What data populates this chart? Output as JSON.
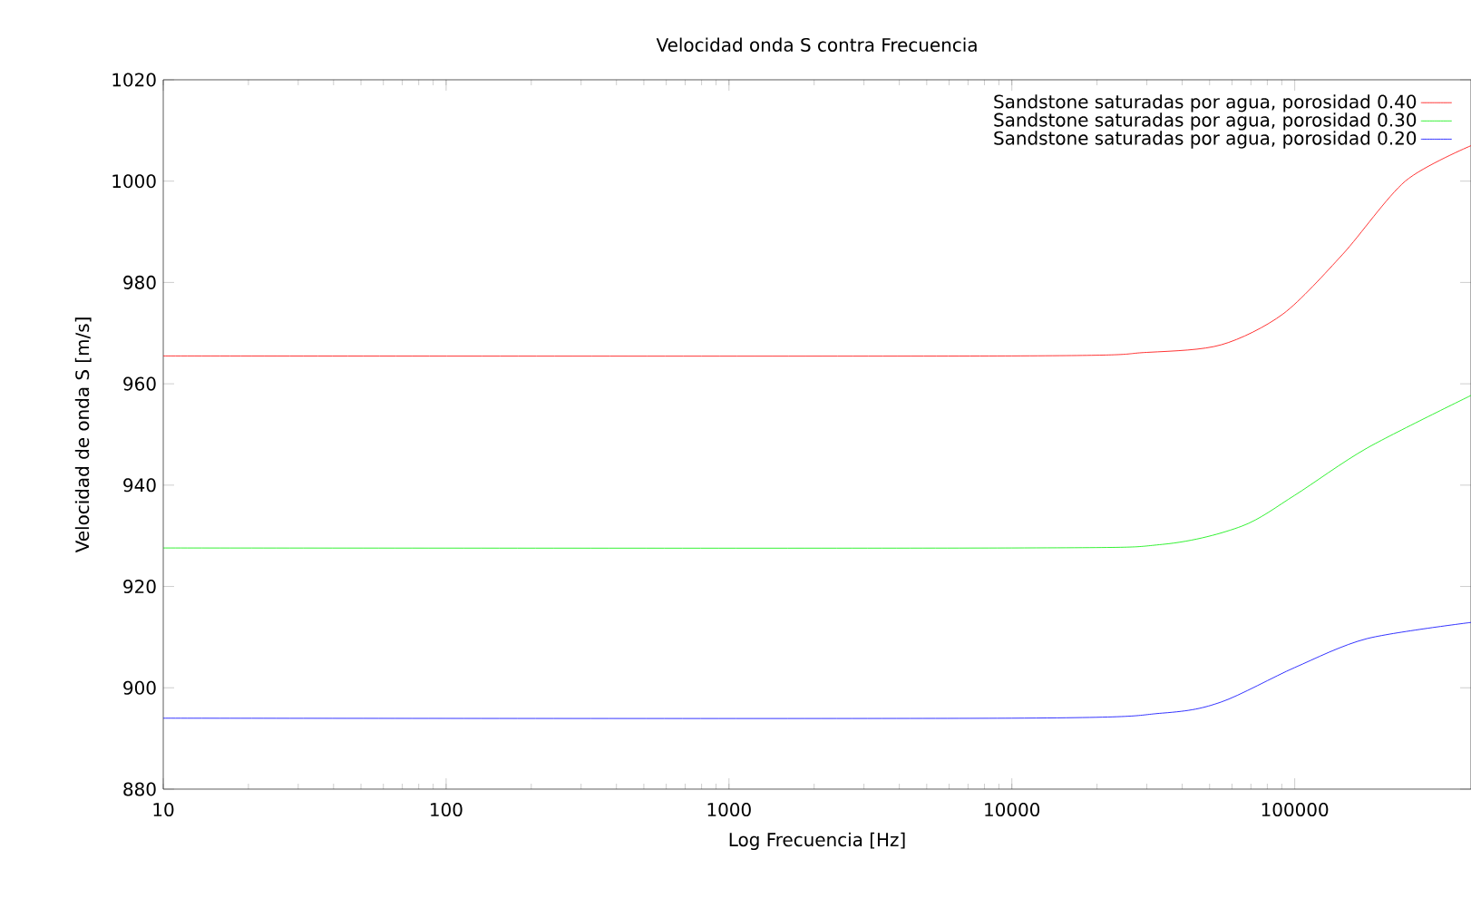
{
  "chart_data": {
    "type": "line",
    "title": "Velocidad onda S contra Frecuencia",
    "xlabel": "Log Frecuencia [Hz]",
    "ylabel": "Velocidad de onda S [m/s]",
    "log": "x",
    "xlim": [
      10,
      420000
    ],
    "ylim": [
      880,
      1020
    ],
    "xticks": [
      10,
      100,
      1000,
      10000,
      100000
    ],
    "yticks": [
      880,
      900,
      920,
      940,
      960,
      980,
      1000,
      1020
    ],
    "legend": "top right",
    "grid": false,
    "marker": "none",
    "line_style": "solid",
    "series": [
      {
        "name": "Sandstone saturadas por agua, porosidad 0.40",
        "color": "#ff0000",
        "x": [
          10,
          10000,
          30000,
          55000,
          91000,
          148000,
          246000,
          420000
        ],
        "values": [
          965.5,
          965.5,
          966.2,
          967.7,
          973.8,
          985.6,
          1000,
          1007
        ]
      },
      {
        "name": "Sandstone saturadas por agua, porosidad 0.30",
        "color": "#00ee00",
        "x": [
          10,
          10000,
          34000,
          65000,
          100000,
          180000,
          420000
        ],
        "values": [
          927.6,
          927.6,
          928.3,
          931.9,
          938,
          947.3,
          957.7
        ]
      },
      {
        "name": "Sandstone saturadas por agua, porosidad 0.20",
        "color": "#0000ff",
        "x": [
          10,
          10000,
          34000,
          55000,
          100000,
          180000,
          420000
        ],
        "values": [
          894,
          894,
          895,
          897.2,
          904,
          909.7,
          912.9
        ]
      }
    ]
  }
}
